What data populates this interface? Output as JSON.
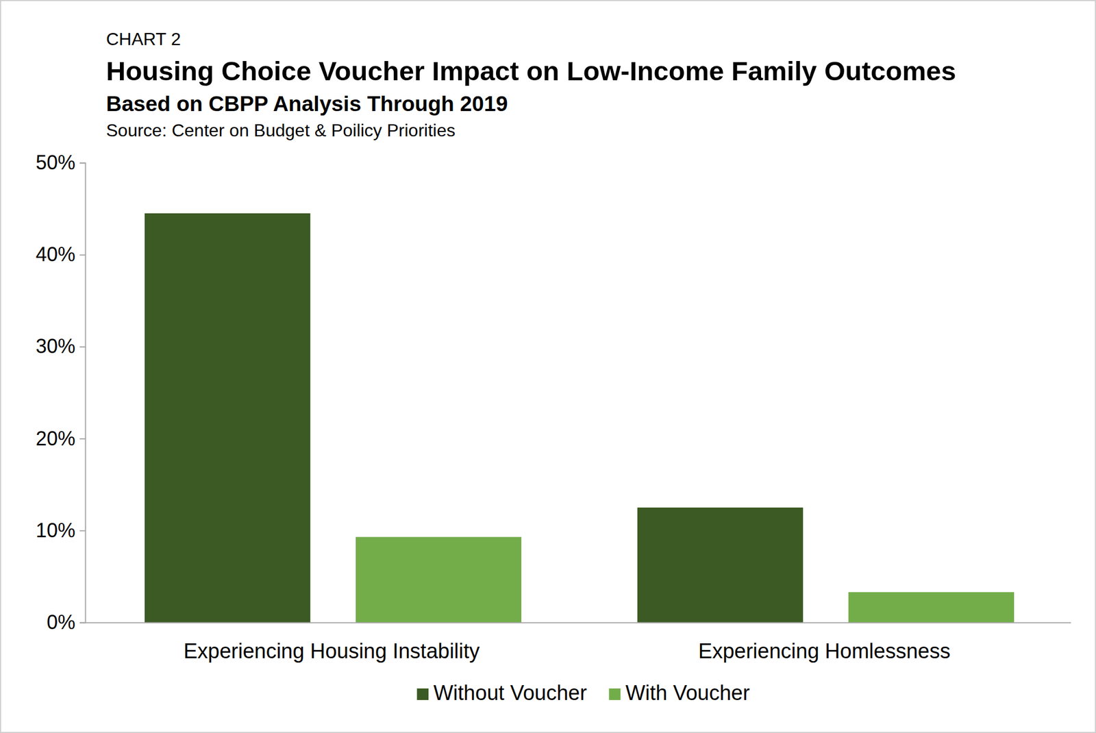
{
  "chart_data": {
    "type": "bar",
    "chart_label": "CHART 2",
    "title": "Housing Choice Voucher Impact on Low-Income Family Outcomes",
    "subtitle": "Based on CBPP Analysis Through 2019",
    "source": "Source: Center on Budget & Poilicy Priorities",
    "categories": [
      "Experiencing Housing Instability",
      "Experiencing Homlessness"
    ],
    "series": [
      {
        "name": "Without Voucher",
        "color": "#3b5a24",
        "values": [
          44.5,
          12.5
        ]
      },
      {
        "name": "With Voucher",
        "color": "#72ad4a",
        "values": [
          9.3,
          3.3
        ]
      }
    ],
    "ylim": [
      0,
      50
    ],
    "yticks": [
      {
        "value": 0,
        "label": "0%"
      },
      {
        "value": 10,
        "label": "10%"
      },
      {
        "value": 20,
        "label": "20%"
      },
      {
        "value": 30,
        "label": "30%"
      },
      {
        "value": 40,
        "label": "40%"
      },
      {
        "value": 50,
        "label": "50%"
      }
    ],
    "grid": false,
    "legend": "bottom",
    "data_labels": false
  }
}
